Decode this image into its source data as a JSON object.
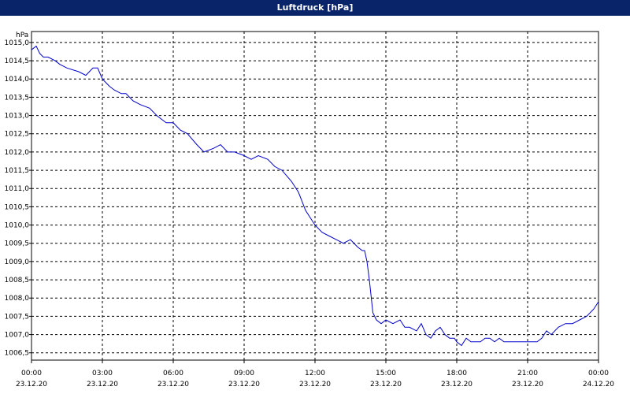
{
  "window": {
    "title": "Luftdruck [hPa]"
  },
  "colors": {
    "titlebar": "#0a246a",
    "line": "#0000cc",
    "grid": "#000000",
    "background": "#ffffff"
  },
  "chart_data": {
    "type": "line",
    "title": "Luftdruck [hPa]",
    "ylabel": "hPa",
    "xlabel": "",
    "grid": true,
    "legend": "none",
    "ylim": [
      1006.3,
      1015.3
    ],
    "xlim": [
      0,
      24
    ],
    "y_ticks": [
      1006.5,
      1007.0,
      1007.5,
      1008.0,
      1008.5,
      1009.0,
      1009.5,
      1010.0,
      1010.5,
      1011.0,
      1011.5,
      1012.0,
      1012.5,
      1013.0,
      1013.5,
      1014.0,
      1014.5,
      1015.0
    ],
    "y_tick_labels": [
      "1006,5",
      "1007,0",
      "1007,5",
      "1008,0",
      "1008,5",
      "1009,0",
      "1009,5",
      "1010,0",
      "1010,5",
      "1011,0",
      "1011,5",
      "1012,0",
      "1012,5",
      "1013,0",
      "1013,5",
      "1014,0",
      "1014,5",
      "1015,0"
    ],
    "x_ticks": [
      0,
      3,
      6,
      9,
      12,
      15,
      18,
      21,
      24
    ],
    "x_tick_times": [
      "00:00",
      "03:00",
      "06:00",
      "09:00",
      "12:00",
      "15:00",
      "18:00",
      "21:00",
      "00:00"
    ],
    "x_tick_dates": [
      "23.12.20",
      "23.12.20",
      "23.12.20",
      "23.12.20",
      "23.12.20",
      "23.12.20",
      "23.12.20",
      "23.12.20",
      "24.12.20"
    ],
    "series": [
      {
        "name": "",
        "x": [
          0,
          0.2,
          0.35,
          0.5,
          0.7,
          1.0,
          1.2,
          1.5,
          2.0,
          2.3,
          2.6,
          2.8,
          3.0,
          3.15,
          3.3,
          3.5,
          3.8,
          4.0,
          4.3,
          4.6,
          5.0,
          5.3,
          5.7,
          6.0,
          6.3,
          6.6,
          7.0,
          7.3,
          7.7,
          8.0,
          8.3,
          8.6,
          9.0,
          9.3,
          9.6,
          10.0,
          10.3,
          10.6,
          11.0,
          11.3,
          11.6,
          12.0,
          12.3,
          12.6,
          12.9,
          13.2,
          13.5,
          13.8,
          14.0,
          14.1,
          14.2,
          14.3,
          14.45,
          14.6,
          14.8,
          15.0,
          15.3,
          15.6,
          15.8,
          16.0,
          16.3,
          16.5,
          16.7,
          16.9,
          17.1,
          17.3,
          17.5,
          17.7,
          17.9,
          18.0,
          18.2,
          18.4,
          18.6,
          18.8,
          19.0,
          19.2,
          19.4,
          19.6,
          19.8,
          20.0,
          20.2,
          20.4,
          20.6,
          20.8,
          21.0,
          21.2,
          21.4,
          21.6,
          21.8,
          22.0,
          22.3,
          22.6,
          22.9,
          23.2,
          23.5,
          23.8,
          24.0
        ],
        "values": [
          1014.8,
          1014.9,
          1014.7,
          1014.6,
          1014.6,
          1014.5,
          1014.4,
          1014.3,
          1014.2,
          1014.1,
          1014.3,
          1014.3,
          1014.0,
          1013.9,
          1013.8,
          1013.7,
          1013.6,
          1013.6,
          1013.4,
          1013.3,
          1013.2,
          1013.0,
          1012.8,
          1012.8,
          1012.6,
          1012.5,
          1012.2,
          1012.0,
          1012.1,
          1012.2,
          1012.0,
          1012.0,
          1011.9,
          1011.8,
          1011.9,
          1011.8,
          1011.6,
          1011.5,
          1011.2,
          1010.9,
          1010.4,
          1010.0,
          1009.8,
          1009.7,
          1009.6,
          1009.5,
          1009.6,
          1009.4,
          1009.3,
          1009.3,
          1009.0,
          1008.5,
          1007.6,
          1007.4,
          1007.3,
          1007.4,
          1007.3,
          1007.4,
          1007.2,
          1007.2,
          1007.1,
          1007.3,
          1007.0,
          1006.9,
          1007.1,
          1007.2,
          1007.0,
          1006.9,
          1006.9,
          1006.8,
          1006.7,
          1006.9,
          1006.8,
          1006.8,
          1006.8,
          1006.9,
          1006.9,
          1006.8,
          1006.9,
          1006.8,
          1006.8,
          1006.8,
          1006.8,
          1006.8,
          1006.8,
          1006.8,
          1006.8,
          1006.9,
          1007.1,
          1007.0,
          1007.2,
          1007.3,
          1007.3,
          1007.4,
          1007.5,
          1007.7,
          1007.9
        ]
      }
    ]
  }
}
